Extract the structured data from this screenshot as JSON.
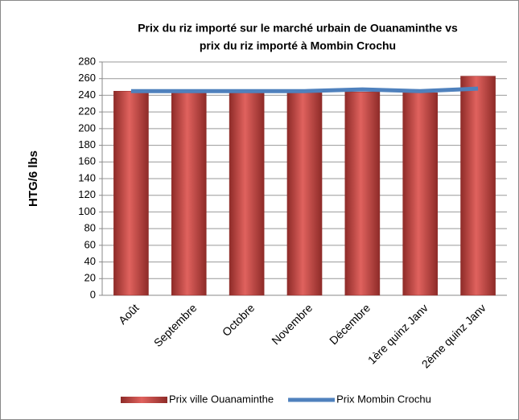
{
  "chart_data": {
    "type": "bar",
    "title": [
      "Prix du riz importé sur le marché urbain de Ouanaminthe vs",
      "prix du riz importé à Mombin Crochu"
    ],
    "y_label": "HTG/6 lbs",
    "categories": [
      "Août",
      "Septembre",
      "Octobre",
      "Novembre",
      "Décembre",
      "1ère quinz Janv",
      "2ème quinz Janv"
    ],
    "series": [
      {
        "name": "Prix ville Ouanaminthe",
        "type": "bar",
        "color": "#c0504d",
        "values": [
          245,
          243,
          243,
          243,
          244,
          243,
          263
        ]
      },
      {
        "name": "Prix Mombin Crochu",
        "type": "line",
        "color": "#4f81bd",
        "values": [
          245,
          245,
          245,
          245,
          247,
          245,
          248
        ]
      }
    ],
    "ylim": [
      0,
      280
    ],
    "yticks": [
      0,
      20,
      40,
      60,
      80,
      100,
      120,
      140,
      160,
      180,
      200,
      220,
      240,
      260,
      280
    ],
    "grid": true,
    "legend": "bottom"
  }
}
